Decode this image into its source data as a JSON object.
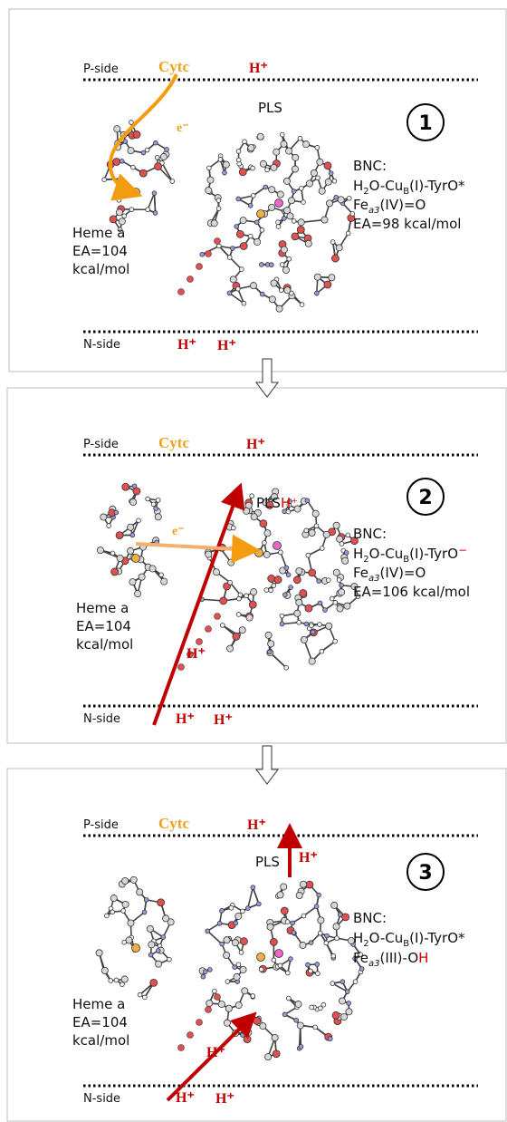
{
  "panels": [
    {
      "number": "1",
      "p_side": "P-side",
      "n_side": "N-side",
      "cytc": "Cytc",
      "electron": "e⁻",
      "proton_top": "H⁺",
      "protons_bottom": [
        "H⁺",
        "H⁺"
      ],
      "pls": "PLS",
      "heme": [
        "Heme a",
        "EA=104",
        "kcal/mol"
      ],
      "bnc": {
        "label": "BNC:",
        "line1": [
          "H",
          "2",
          "O-Cu",
          "B",
          "(I)-TyrO*"
        ],
        "line2": [
          "Fe",
          "a3",
          "(IV)=O"
        ],
        "ea": "EA=98 kcal/mol"
      }
    },
    {
      "number": "2",
      "p_side": "P-side",
      "n_side": "N-side",
      "cytc": "Cytc",
      "electron": "e⁻",
      "proton_top": "H⁺",
      "protons_bottom": [
        "H⁺",
        "H⁺"
      ],
      "pls": [
        "PLS",
        "H⁺"
      ],
      "proton_mid": "H⁺",
      "heme": [
        "Heme a",
        "EA=104",
        "kcal/mol"
      ],
      "bnc": {
        "label": "BNC:",
        "line1": [
          "H",
          "2",
          "O-Cu",
          "B",
          "(I)-TyrO",
          "−"
        ],
        "line2": [
          "Fe",
          "a3",
          "(IV)=O"
        ],
        "ea": "EA=106 kcal/mol"
      }
    },
    {
      "number": "3",
      "p_side": "P-side",
      "n_side": "N-side",
      "cytc": "Cytc",
      "proton_top": "H⁺",
      "protons_bottom": [
        "H⁺",
        "H⁺"
      ],
      "pls": "PLS",
      "proton_exit": "H⁺",
      "proton_mid": "H⁺",
      "heme": [
        "Heme a",
        "EA=104",
        "kcal/mol"
      ],
      "bnc": {
        "label": "BNC:",
        "line1": [
          "H",
          "2",
          "O-Cu",
          "B",
          "(I)-TyrO*"
        ],
        "line2": [
          "Fe",
          "a3",
          "(III)-O",
          "H"
        ]
      }
    }
  ]
}
